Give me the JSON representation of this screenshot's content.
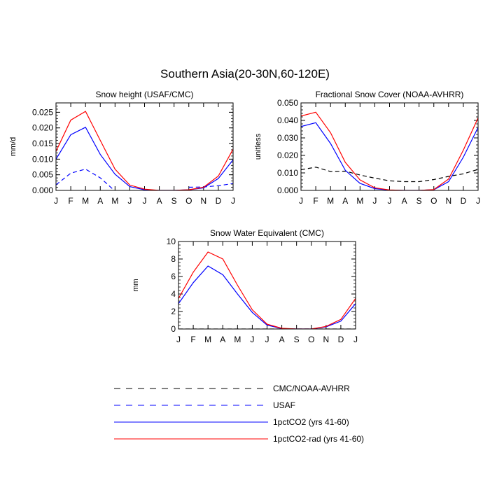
{
  "figure": {
    "title": "Southern Asia(20-30N,60-120E)"
  },
  "chart_data": [
    {
      "type": "line",
      "title": "Snow height (USAF/CMC)",
      "xlabel": "",
      "ylabel": "mm/d",
      "x": [
        "J",
        "F",
        "M",
        "A",
        "M",
        "J",
        "J",
        "A",
        "S",
        "O",
        "N",
        "D",
        "J"
      ],
      "ylim": [
        0,
        0.028
      ],
      "yticks": [
        "0.000",
        "0.005",
        "0.010",
        "0.015",
        "0.020",
        "0.025"
      ],
      "ytick_values": [
        0,
        0.005,
        0.01,
        0.015,
        0.02,
        0.025
      ],
      "grid": false,
      "series": [
        {
          "name": "USAF",
          "color": "#0000ff",
          "dash": "dashed",
          "values": [
            0.0018,
            0.0055,
            0.0068,
            0.004,
            -0.0002,
            null,
            null,
            null,
            null,
            0.001,
            0.0011,
            0.0015,
            0.0022
          ]
        },
        {
          "name": "1pctCO2 (yrs 41-60)",
          "color": "#0000ff",
          "dash": "solid",
          "values": [
            0.01,
            0.0178,
            0.0202,
            0.0115,
            0.0052,
            0.0012,
            0.0002,
            0.0,
            0.0,
            0.0002,
            0.0008,
            0.0038,
            0.0098
          ]
        },
        {
          "name": "1pctCO2-rad (yrs 41-60)",
          "color": "#ff0000",
          "dash": "solid",
          "values": [
            0.0125,
            0.0225,
            0.0253,
            0.016,
            0.0068,
            0.0017,
            0.0004,
            0.0,
            0.0,
            0.0002,
            0.001,
            0.0046,
            0.0132
          ]
        }
      ]
    },
    {
      "type": "line",
      "title": "Fractional Snow Cover (NOAA-AVHRR)",
      "xlabel": "",
      "ylabel": "unitless",
      "x": [
        "J",
        "F",
        "M",
        "A",
        "M",
        "J",
        "J",
        "A",
        "S",
        "O",
        "N",
        "D",
        "J"
      ],
      "ylim": [
        0,
        0.05
      ],
      "yticks": [
        "0.000",
        "0.010",
        "0.020",
        "0.030",
        "0.040",
        "0.050"
      ],
      "ytick_values": [
        0,
        0.01,
        0.02,
        0.03,
        0.04,
        0.05
      ],
      "grid": false,
      "series": [
        {
          "name": "CMC/NOAA-AVHRR",
          "color": "#000000",
          "dash": "dashed",
          "values": [
            0.0118,
            0.0133,
            0.0108,
            0.011,
            0.0088,
            0.007,
            0.0055,
            0.005,
            0.005,
            0.0062,
            0.008,
            0.0095,
            0.012
          ]
        },
        {
          "name": "1pctCO2 (yrs 41-60)",
          "color": "#0000ff",
          "dash": "solid",
          "values": [
            0.0365,
            0.0387,
            0.0268,
            0.0115,
            0.004,
            0.001,
            0.0002,
            0.0,
            0.0,
            0.0004,
            0.005,
            0.019,
            0.036
          ]
        },
        {
          "name": "1pctCO2-rad (yrs 41-60)",
          "color": "#ff0000",
          "dash": "solid",
          "values": [
            0.0425,
            0.0447,
            0.033,
            0.016,
            0.006,
            0.0015,
            0.0003,
            0.0,
            0.0,
            0.0005,
            0.0065,
            0.023,
            0.0415
          ]
        }
      ]
    },
    {
      "type": "line",
      "title": "Snow Water Equivalent (CMC)",
      "xlabel": "",
      "ylabel": "mm",
      "x": [
        "J",
        "F",
        "M",
        "A",
        "M",
        "J",
        "J",
        "A",
        "S",
        "O",
        "N",
        "D",
        "J"
      ],
      "ylim": [
        0,
        10
      ],
      "yticks": [
        "0",
        "2",
        "4",
        "6",
        "8",
        "10"
      ],
      "ytick_values": [
        0,
        2,
        4,
        6,
        8,
        10
      ],
      "grid": false,
      "series": [
        {
          "name": "CMC/NOAA-AVHRR",
          "color": "#000000",
          "dash": "dashed",
          "values": [
            0,
            0,
            0,
            0,
            0,
            0,
            0,
            0,
            0,
            0,
            0,
            0,
            0
          ]
        },
        {
          "name": "1pctCO2 (yrs 41-60)",
          "color": "#0000ff",
          "dash": "solid",
          "values": [
            2.9,
            5.3,
            7.2,
            6.2,
            4.0,
            1.9,
            0.45,
            0.05,
            0.0,
            0.0,
            0.25,
            0.9,
            2.9
          ]
        },
        {
          "name": "1pctCO2-rad (yrs 41-60)",
          "color": "#ff0000",
          "dash": "solid",
          "values": [
            3.5,
            6.5,
            8.8,
            8.0,
            5.0,
            2.2,
            0.55,
            0.08,
            0.0,
            0.0,
            0.3,
            1.1,
            3.5
          ]
        }
      ]
    }
  ],
  "legend": [
    {
      "label": "CMC/NOAA-AVHRR",
      "color": "#000000",
      "dash": "dashed"
    },
    {
      "label": "USAF",
      "color": "#0000ff",
      "dash": "dashed"
    },
    {
      "label": "1pctCO2 (yrs 41-60)",
      "color": "#0000ff",
      "dash": "solid"
    },
    {
      "label": "1pctCO2-rad (yrs 41-60)",
      "color": "#ff0000",
      "dash": "solid"
    }
  ]
}
